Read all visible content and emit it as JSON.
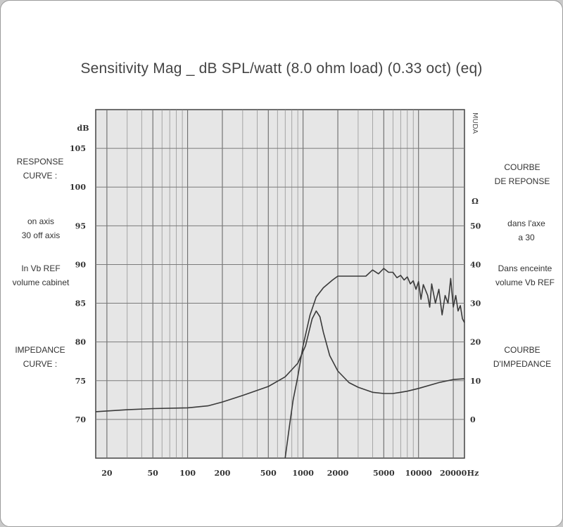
{
  "chart_data": {
    "type": "line",
    "title": "Sensitivity Mag _ dB SPL/watt (8.0 ohm load) (0.33 oct) (eq)",
    "y_unit": "dB",
    "y2_unit": "Ω",
    "x_unit": "Hz",
    "xscale": "log",
    "xlim": [
      16,
      25000
    ],
    "ylim": [
      65,
      110
    ],
    "y2lim": [
      -10,
      80
    ],
    "grid": true,
    "x_ticks": [
      {
        "value": 20,
        "label": "20"
      },
      {
        "value": 50,
        "label": "50"
      },
      {
        "value": 100,
        "label": "100"
      },
      {
        "value": 200,
        "label": "200"
      },
      {
        "value": 500,
        "label": "500"
      },
      {
        "value": 1000,
        "label": "1000"
      },
      {
        "value": 2000,
        "label": "2000"
      },
      {
        "value": 5000,
        "label": "5000"
      },
      {
        "value": 10000,
        "label": "10000"
      },
      {
        "value": 20000,
        "label": "20000"
      }
    ],
    "x_tail_label": "Hz",
    "y_ticks": [
      {
        "value": 105,
        "label": "105"
      },
      {
        "value": 100,
        "label": "100"
      },
      {
        "value": 95,
        "label": "95"
      },
      {
        "value": 90,
        "label": "90"
      },
      {
        "value": 85,
        "label": "85"
      },
      {
        "value": 80,
        "label": "80"
      },
      {
        "value": 75,
        "label": "75"
      },
      {
        "value": 70,
        "label": "70"
      }
    ],
    "y2_ticks": [
      {
        "value": 50,
        "label": "50"
      },
      {
        "value": 40,
        "label": "40"
      },
      {
        "value": 30,
        "label": "30"
      },
      {
        "value": 20,
        "label": "20"
      },
      {
        "value": 10,
        "label": "10"
      },
      {
        "value": 0,
        "label": "0"
      }
    ],
    "series": [
      {
        "axis": "left",
        "color": "#3a3a3a",
        "points": [
          [
            700,
            65
          ],
          [
            760,
            69
          ],
          [
            820,
            72.5
          ],
          [
            900,
            75.5
          ],
          [
            1000,
            79.5
          ],
          [
            1150,
            83.5
          ],
          [
            1300,
            85.8
          ],
          [
            1500,
            87
          ],
          [
            1800,
            88
          ],
          [
            2000,
            88.5
          ],
          [
            2500,
            88.5
          ],
          [
            3000,
            88.5
          ],
          [
            3500,
            88.5
          ],
          [
            4000,
            89.3
          ],
          [
            4500,
            88.8
          ],
          [
            5000,
            89.5
          ],
          [
            5500,
            89
          ],
          [
            6000,
            89
          ],
          [
            6500,
            88.3
          ],
          [
            7000,
            88.6
          ],
          [
            7500,
            88
          ],
          [
            8000,
            88.4
          ],
          [
            8500,
            87.5
          ],
          [
            9000,
            87.9
          ],
          [
            9500,
            86.8
          ],
          [
            10000,
            87.8
          ],
          [
            10500,
            85.5
          ],
          [
            11000,
            87.4
          ],
          [
            12000,
            86
          ],
          [
            12500,
            84.5
          ],
          [
            13000,
            87.5
          ],
          [
            14000,
            85
          ],
          [
            15000,
            86.8
          ],
          [
            16000,
            83.5
          ],
          [
            17000,
            86
          ],
          [
            18000,
            85
          ],
          [
            18500,
            86.5
          ],
          [
            19000,
            88.2
          ],
          [
            20000,
            84.5
          ],
          [
            21000,
            86
          ],
          [
            22000,
            84
          ],
          [
            23000,
            84.7
          ],
          [
            24000,
            83
          ],
          [
            25000,
            82.5
          ]
        ]
      },
      {
        "axis": "right",
        "color": "#3a3a3a",
        "points": [
          [
            16,
            2
          ],
          [
            30,
            2.5
          ],
          [
            50,
            2.8
          ],
          [
            100,
            3
          ],
          [
            150,
            3.5
          ],
          [
            200,
            4.5
          ],
          [
            300,
            6.2
          ],
          [
            500,
            8.5
          ],
          [
            700,
            11
          ],
          [
            900,
            14.5
          ],
          [
            1050,
            19
          ],
          [
            1200,
            26
          ],
          [
            1300,
            28
          ],
          [
            1400,
            26.5
          ],
          [
            1500,
            22.5
          ],
          [
            1700,
            16.5
          ],
          [
            2000,
            12.5
          ],
          [
            2500,
            9.5
          ],
          [
            3000,
            8.3
          ],
          [
            4000,
            7
          ],
          [
            5000,
            6.7
          ],
          [
            6000,
            6.7
          ],
          [
            7000,
            7
          ],
          [
            8000,
            7.3
          ],
          [
            10000,
            8
          ],
          [
            15000,
            9.5
          ],
          [
            20000,
            10.3
          ],
          [
            25000,
            10.5
          ]
        ]
      }
    ]
  },
  "left_labels": {
    "response": [
      "RESPONSE",
      "CURVE :"
    ],
    "axis_lines": [
      "on axis",
      "30  off axis"
    ],
    "vb_lines": [
      "In Vb REF",
      "volume cabinet"
    ],
    "impedance": [
      "IMPEDANCE",
      "CURVE :"
    ]
  },
  "right_labels": {
    "response": [
      "COURBE",
      "DE REPONSE"
    ],
    "axis_lines": [
      "dans l'axe",
      "a 30"
    ],
    "vb_lines": [
      "Dans enceinte",
      "volume  Vb REF"
    ],
    "impedance": [
      "COURBE",
      "D'IMPEDANCE"
    ]
  },
  "right_axis_note": "MUDA"
}
